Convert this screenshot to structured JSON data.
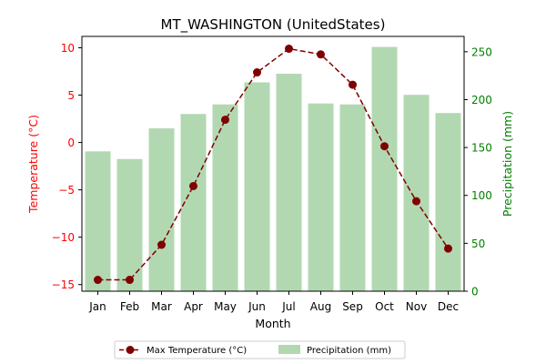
{
  "chart_data": {
    "type": "bar+line",
    "title": "MT_WASHINGTON (UnitedStates)",
    "xlabel": "Month",
    "categories": [
      "Jan",
      "Feb",
      "Mar",
      "Apr",
      "May",
      "Jun",
      "Jul",
      "Aug",
      "Sep",
      "Oct",
      "Nov",
      "Dec"
    ],
    "y_left": {
      "label": "Temperature (°C)",
      "lim": [
        -15.7,
        11.2
      ],
      "ticks": [
        -15,
        -10,
        -5,
        0,
        5,
        10
      ],
      "tick_labels": [
        "−15",
        "−10",
        "−5",
        "0",
        "5",
        "10"
      ],
      "color": "#ff0000"
    },
    "y_right": {
      "label": "Precipitation (mm)",
      "lim": [
        0,
        266
      ],
      "ticks": [
        0,
        50,
        100,
        150,
        200,
        250
      ],
      "tick_labels": [
        "0",
        "50",
        "100",
        "150",
        "200",
        "250"
      ],
      "color": "#008000"
    },
    "series": [
      {
        "name": "Max Temperature (°C)",
        "type": "line",
        "axis": "left",
        "color": "#800000",
        "values": [
          -14.5,
          -14.5,
          -10.8,
          -4.6,
          2.4,
          7.4,
          9.9,
          9.3,
          6.1,
          -0.4,
          -6.2,
          -11.2
        ]
      },
      {
        "name": "Precipitation (mm)",
        "type": "bar",
        "axis": "right",
        "color": "#b2d8b2",
        "values": [
          146,
          138,
          170,
          185,
          195,
          218,
          227,
          196,
          195,
          255,
          205,
          186
        ]
      }
    ],
    "legend": {
      "position": "bottom-center"
    }
  }
}
